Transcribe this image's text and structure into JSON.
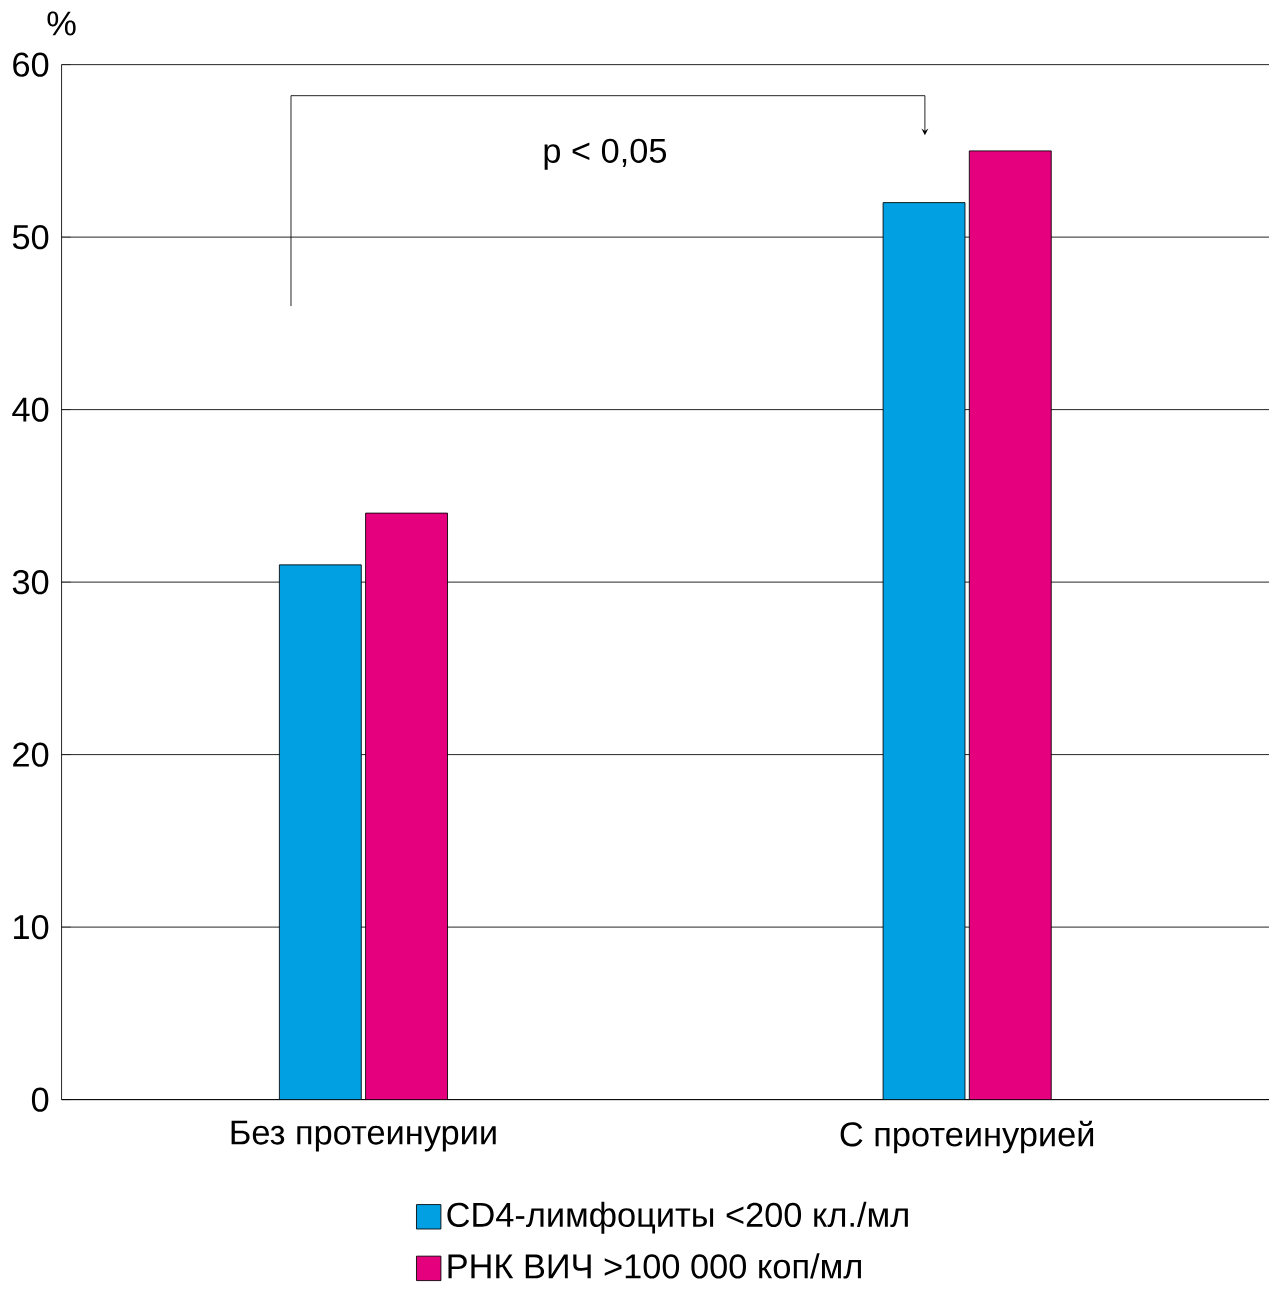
{
  "chart_data": {
    "type": "bar",
    "ylabel": "%",
    "categories": [
      "Без протеинурии",
      "С протеинурией"
    ],
    "series": [
      {
        "name": "CD4-лимфоциты <200 кл./мл",
        "color": "#00a0e3",
        "values": [
          31,
          52
        ]
      },
      {
        "name": "РНК ВИЧ >100 000 коп/мл",
        "color": "#e5007d",
        "values": [
          34,
          55
        ]
      }
    ],
    "ylim": [
      0,
      60
    ],
    "yticks": [
      0,
      10,
      20,
      30,
      40,
      50,
      60
    ],
    "grid": "y",
    "legend": "bottom",
    "annotations": [
      "p < 0,05"
    ]
  }
}
